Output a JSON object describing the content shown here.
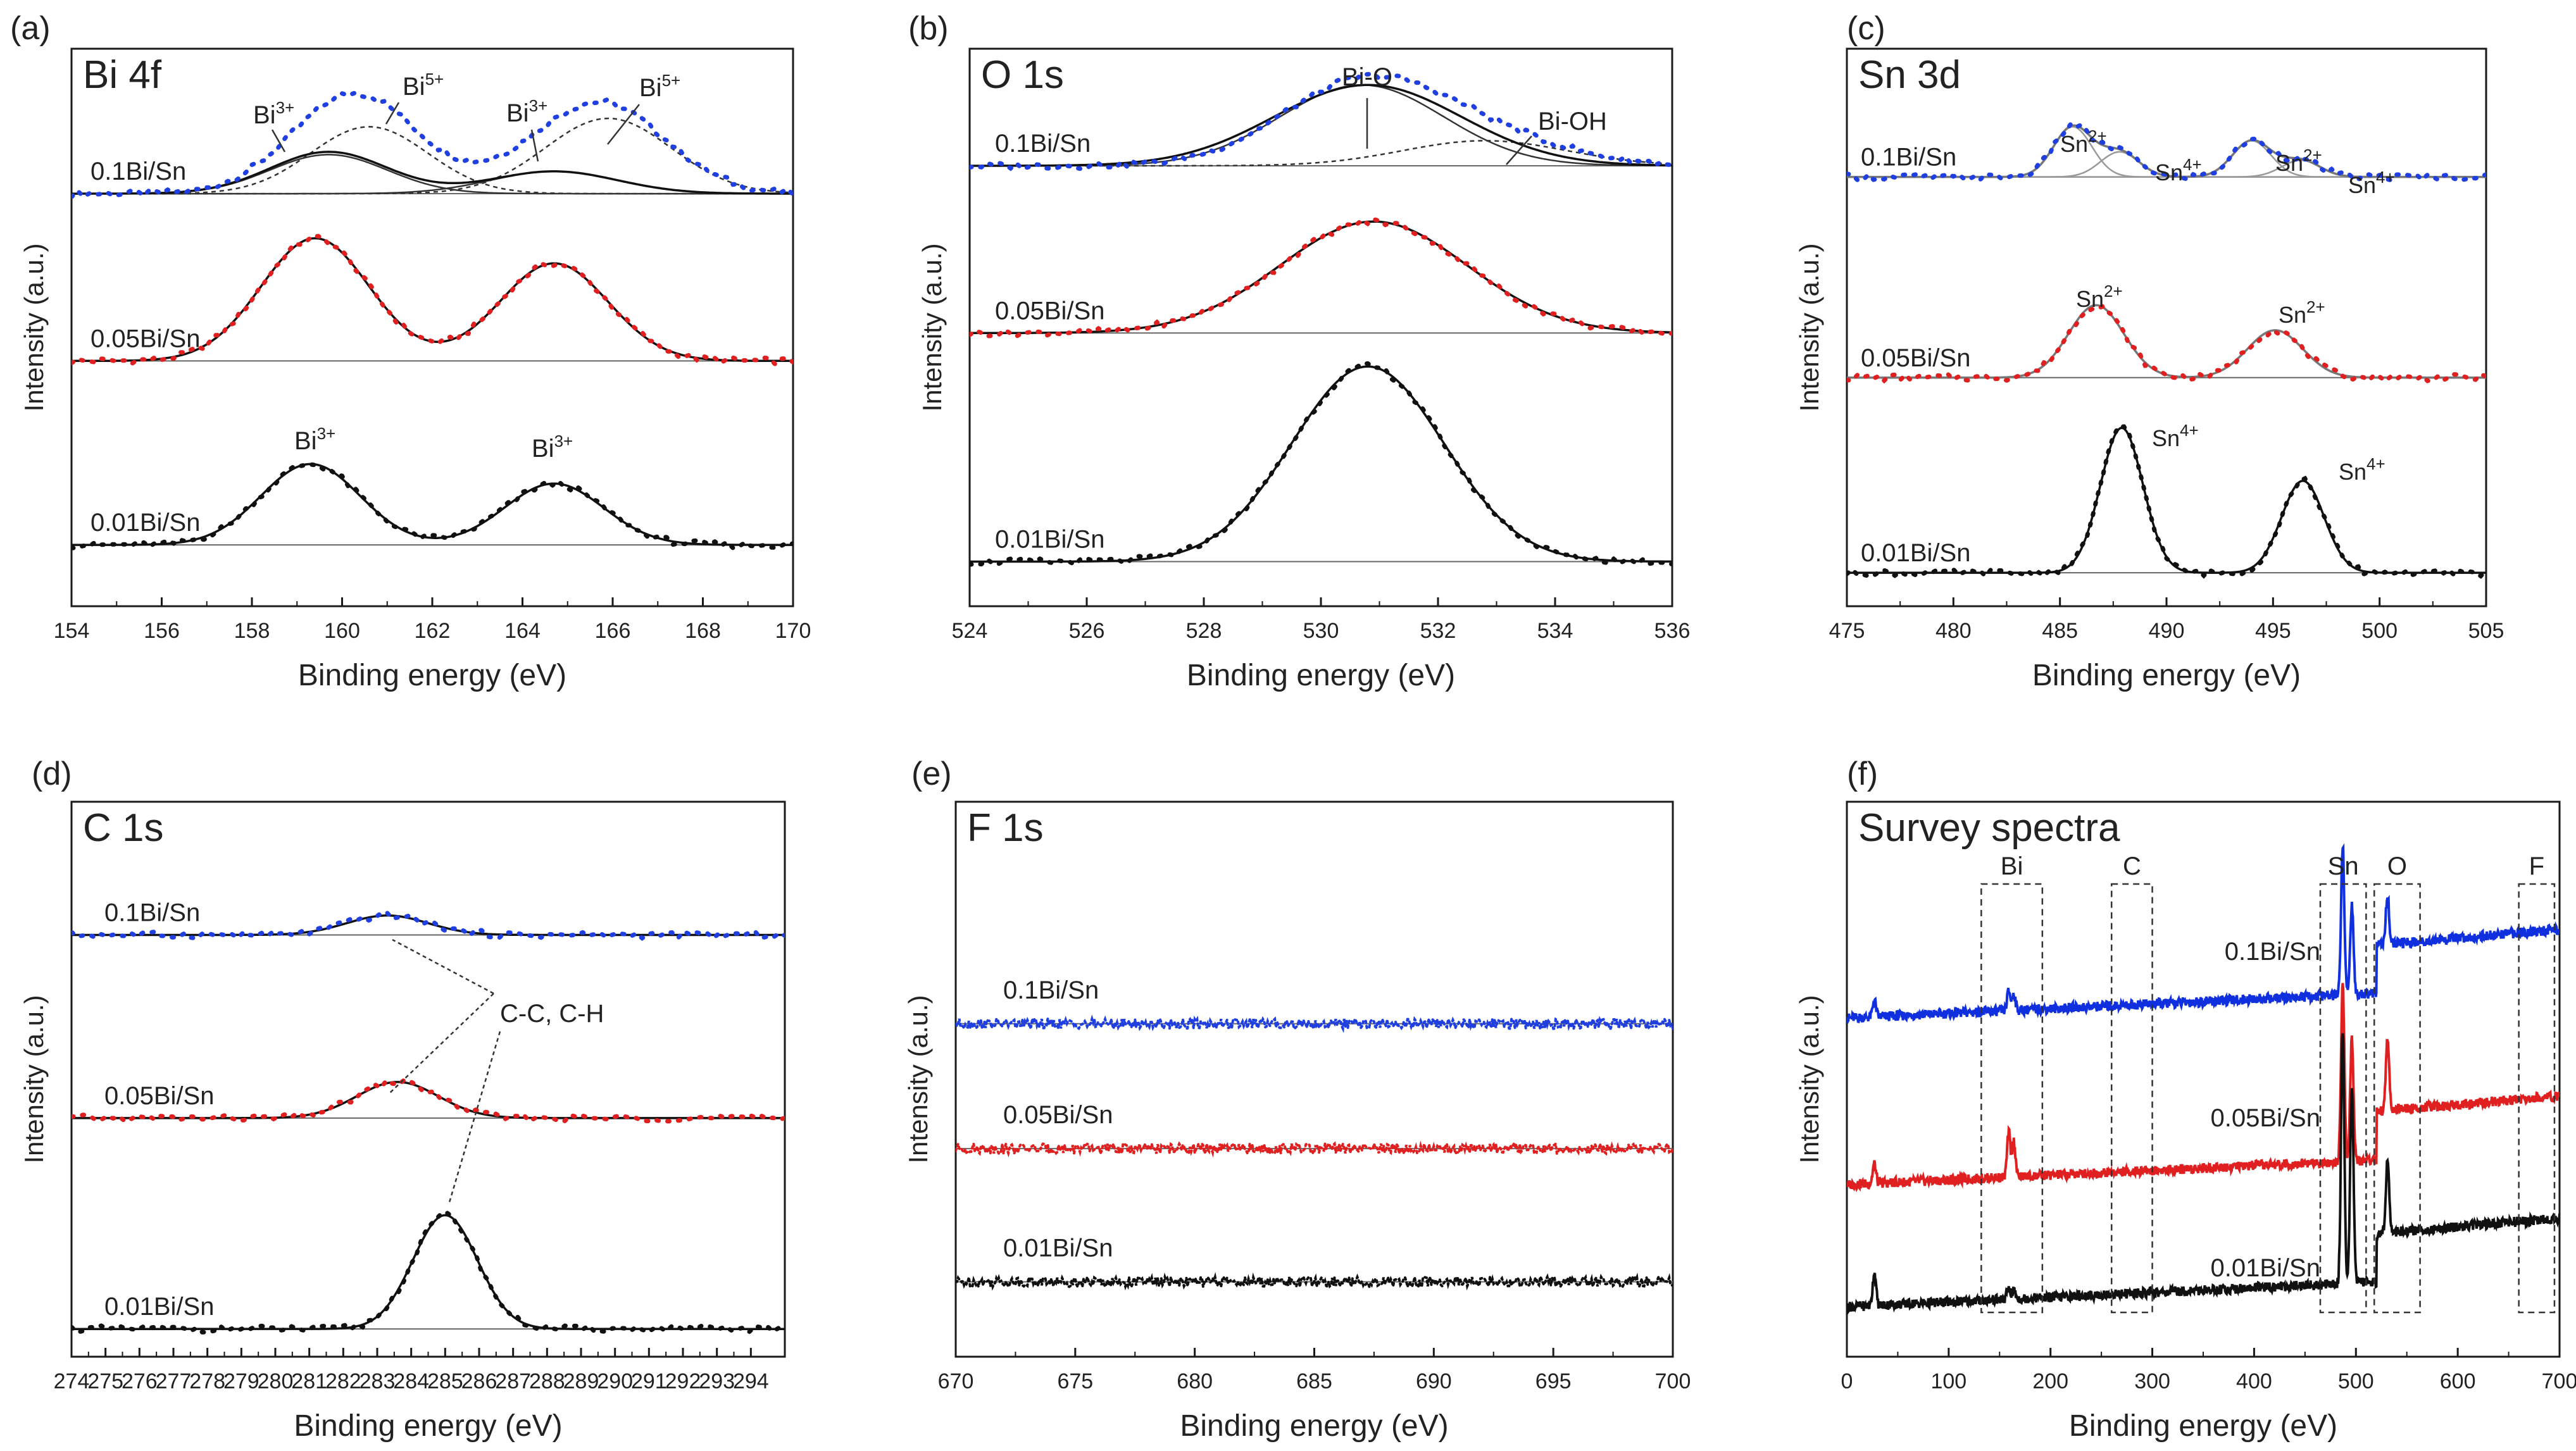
{
  "chart_data": [
    {
      "panel": "(a)",
      "type": "line",
      "title": "Bi 4f",
      "xlabel": "Binding energy (eV)",
      "ylabel": "Intensity (a.u.)",
      "xlim": [
        154,
        170
      ],
      "xticks": [
        154,
        156,
        158,
        160,
        162,
        164,
        166,
        168,
        170
      ],
      "ylim": [
        0,
        10
      ],
      "series": [
        {
          "name": "0.1Bi/Sn",
          "color": "#1f3fe0",
          "baseline": 7.4,
          "components": [
            {
              "label": "Bi3+",
              "center": 159.7,
              "height": 0.7,
              "width": 1.3
            },
            {
              "label": "Bi5+",
              "center": 160.6,
              "height": 1.2,
              "width": 1.3
            },
            {
              "label": "Bi3+",
              "center": 164.7,
              "height": 0.4,
              "width": 1.4
            },
            {
              "label": "Bi5+",
              "center": 165.9,
              "height": 1.35,
              "width": 1.4
            }
          ]
        },
        {
          "name": "0.05Bi/Sn",
          "color": "#e02020",
          "baseline": 4.4,
          "components": [
            {
              "label": "Bi3+",
              "center": 159.4,
              "height": 2.2,
              "width": 1.2
            },
            {
              "label": "Bi3+",
              "center": 164.7,
              "height": 1.75,
              "width": 1.2
            }
          ]
        },
        {
          "name": "0.01Bi/Sn",
          "color": "#111111",
          "baseline": 1.1,
          "components": [
            {
              "label": "Bi3+",
              "center": 159.3,
              "height": 1.45,
              "width": 1.1
            },
            {
              "label": "Bi3+",
              "center": 164.7,
              "height": 1.1,
              "width": 1.1
            }
          ]
        }
      ]
    },
    {
      "panel": "(b)",
      "type": "line",
      "title": "O 1s",
      "xlabel": "Binding energy (eV)",
      "ylabel": "Intensity (a.u.)",
      "xlim": [
        524,
        536
      ],
      "xticks": [
        524,
        526,
        528,
        530,
        532,
        534,
        536
      ],
      "ylim": [
        0,
        10
      ],
      "series": [
        {
          "name": "0.1Bi/Sn",
          "color": "#1f3fe0",
          "baseline": 7.9,
          "components": [
            {
              "label": "Bi-O",
              "center": 530.7,
              "height": 1.45,
              "width": 1.4
            },
            {
              "label": "Bi-OH",
              "center": 532.8,
              "height": 0.45,
              "width": 1.4
            }
          ]
        },
        {
          "name": "0.05Bi/Sn",
          "color": "#e02020",
          "baseline": 4.9,
          "components": [
            {
              "label": "Bi-O",
              "center": 530.9,
              "height": 2.0,
              "width": 1.6
            }
          ]
        },
        {
          "name": "0.01Bi/Sn",
          "color": "#111111",
          "baseline": 0.8,
          "components": [
            {
              "label": "Bi-O",
              "center": 530.8,
              "height": 3.5,
              "width": 1.3
            }
          ]
        }
      ]
    },
    {
      "panel": "(c)",
      "type": "line",
      "title": "Sn 3d",
      "xlabel": "Binding energy (eV)",
      "ylabel": "Intensity (a.u.)",
      "xlim": [
        475,
        505
      ],
      "xticks": [
        475,
        480,
        485,
        490,
        495,
        500,
        505
      ],
      "ylim": [
        0,
        10
      ],
      "series": [
        {
          "name": "0.1Bi/Sn",
          "color": "#1f3fe0",
          "baseline": 7.7,
          "components": [
            {
              "label": "Sn2+",
              "center": 485.6,
              "height": 0.9,
              "width": 0.9
            },
            {
              "label": "Sn4+",
              "center": 487.8,
              "height": 0.45,
              "width": 0.9
            },
            {
              "label": "Sn2+",
              "center": 494.0,
              "height": 0.65,
              "width": 0.9
            },
            {
              "label": "Sn4+",
              "center": 496.3,
              "height": 0.3,
              "width": 0.9
            }
          ]
        },
        {
          "name": "0.05Bi/Sn",
          "color": "#e02020",
          "baseline": 4.1,
          "components": [
            {
              "label": "Sn2+",
              "center": 486.7,
              "height": 1.3,
              "width": 1.3
            },
            {
              "label": "Sn2+",
              "center": 495.1,
              "height": 0.85,
              "width": 1.3
            }
          ]
        },
        {
          "name": "0.01Bi/Sn",
          "color": "#111111",
          "baseline": 0.6,
          "components": [
            {
              "label": "Sn4+",
              "center": 487.9,
              "height": 2.6,
              "width": 1.0
            },
            {
              "label": "Sn4+",
              "center": 496.4,
              "height": 1.65,
              "width": 1.0
            }
          ]
        }
      ]
    },
    {
      "panel": "(d)",
      "type": "line",
      "title": "C 1s",
      "xlabel": "Binding energy (eV)",
      "ylabel": "Intensity (a.u.)",
      "xlim": [
        274,
        295
      ],
      "xticks": [
        274,
        275,
        276,
        277,
        278,
        279,
        280,
        281,
        282,
        283,
        284,
        285,
        286,
        287,
        288,
        289,
        290,
        291,
        292,
        293,
        294
      ],
      "ylim": [
        0,
        10
      ],
      "annotation": "C-C, C-H",
      "series": [
        {
          "name": "0.1Bi/Sn",
          "color": "#1f3fe0",
          "baseline": 7.6,
          "components": [
            {
              "label": "C-C, C-H",
              "center": 283.3,
              "height": 0.35,
              "width": 1.2
            }
          ]
        },
        {
          "name": "0.05Bi/Sn",
          "color": "#e02020",
          "baseline": 4.3,
          "components": [
            {
              "label": "C-C, C-H",
              "center": 283.6,
              "height": 0.65,
              "width": 1.2
            }
          ]
        },
        {
          "name": "0.01Bi/Sn",
          "color": "#111111",
          "baseline": 0.5,
          "components": [
            {
              "label": "C-C, C-H",
              "center": 285.0,
              "height": 2.05,
              "width": 0.95
            }
          ]
        }
      ]
    },
    {
      "panel": "(e)",
      "type": "line",
      "title": "F 1s",
      "xlabel": "Binding energy (eV)",
      "ylabel": "Intensity (a.u.)",
      "xlim": [
        670,
        700
      ],
      "xticks": [
        670,
        675,
        680,
        685,
        690,
        695,
        700
      ],
      "ylim": [
        0,
        10
      ],
      "series": [
        {
          "name": "0.1Bi/Sn",
          "color": "#1f3fe0",
          "baseline": 6.0,
          "components": []
        },
        {
          "name": "0.05Bi/Sn",
          "color": "#e02020",
          "baseline": 3.75,
          "components": []
        },
        {
          "name": "0.01Bi/Sn",
          "color": "#111111",
          "baseline": 1.35,
          "components": []
        }
      ]
    },
    {
      "panel": "(f)",
      "type": "line",
      "title": "Survey spectra",
      "xlabel": "Binding energy (eV)",
      "ylabel": "Intensity (a.u.)",
      "xlim": [
        0,
        700
      ],
      "xticks": [
        0,
        100,
        200,
        300,
        400,
        500,
        600,
        700
      ],
      "ylim": [
        0,
        10
      ],
      "regions": [
        {
          "label": "Bi",
          "from": 132,
          "to": 192
        },
        {
          "label": "C",
          "from": 260,
          "to": 300
        },
        {
          "label": "Sn",
          "from": 465,
          "to": 510
        },
        {
          "label": "O",
          "from": 518,
          "to": 563
        },
        {
          "label": "F",
          "from": 660,
          "to": 695
        }
      ],
      "series": [
        {
          "name": "0.1Bi/Sn",
          "color": "#1030e0",
          "baseline": 6.1,
          "peaks": [
            {
              "x": 27,
              "h": 0.3
            },
            {
              "x": 159,
              "h": 0.35
            },
            {
              "x": 164,
              "h": 0.3
            },
            {
              "x": 487,
              "h": 2.7
            },
            {
              "x": 496,
              "h": 1.6
            },
            {
              "x": 531,
              "h": 0.9
            }
          ]
        },
        {
          "name": "0.05Bi/Sn",
          "color": "#e02020",
          "baseline": 3.1,
          "peaks": [
            {
              "x": 27,
              "h": 0.35
            },
            {
              "x": 159,
              "h": 0.8
            },
            {
              "x": 164,
              "h": 0.65
            },
            {
              "x": 487,
              "h": 3.2
            },
            {
              "x": 496,
              "h": 2.2
            },
            {
              "x": 531,
              "h": 1.3
            }
          ]
        },
        {
          "name": "0.01Bi/Sn",
          "color": "#111111",
          "baseline": 0.9,
          "peaks": [
            {
              "x": 27,
              "h": 0.6
            },
            {
              "x": 159,
              "h": 0.2
            },
            {
              "x": 164,
              "h": 0.15
            },
            {
              "x": 487,
              "h": 4.6
            },
            {
              "x": 496,
              "h": 3.6
            },
            {
              "x": 531,
              "h": 1.3
            }
          ]
        }
      ]
    }
  ],
  "labels": {
    "panels": [
      "(a)",
      "(b)",
      "(c)",
      "(d)",
      "(e)",
      "(f)"
    ],
    "bi3": "Bi",
    "bi3sup": "3+",
    "bi5": "Bi",
    "bi5sup": "5+",
    "bio": "Bi-O",
    "bioh": "Bi-OH",
    "sn2": "Sn",
    "sn2sup": "2+",
    "sn4": "Sn",
    "sn4sup": "4+",
    "cc": "C-C, C-H"
  }
}
